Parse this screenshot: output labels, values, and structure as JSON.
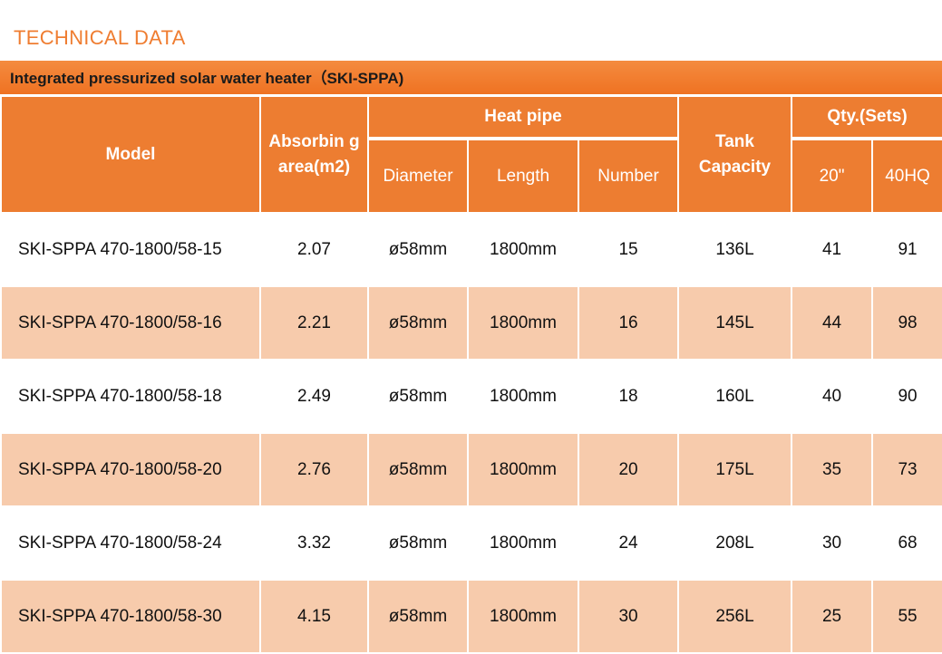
{
  "heading": "TECHNICAL DATA",
  "title": "Integrated pressurized solar water heater（SKI-SPPA)",
  "header": {
    "model": "Model",
    "absorbing_area": "Absorbin g area(m2)",
    "heat_pipe": "Heat pipe",
    "diameter": "Diameter",
    "length": "Length",
    "number": "Number",
    "tank_capacity": "Tank Capacity",
    "qty": "Qty.(Sets)",
    "qty_20": "20\"",
    "qty_40hq": "40HQ"
  },
  "rows": [
    {
      "model": "SKI-SPPA 470-1800/58-15",
      "area": "2.07",
      "diameter": "ø58mm",
      "length": "1800mm",
      "number": "15",
      "tank": "136L",
      "q20": "41",
      "q40": "91"
    },
    {
      "model": "SKI-SPPA 470-1800/58-16",
      "area": "2.21",
      "diameter": "ø58mm",
      "length": "1800mm",
      "number": "16",
      "tank": "145L",
      "q20": "44",
      "q40": "98"
    },
    {
      "model": "SKI-SPPA 470-1800/58-18",
      "area": "2.49",
      "diameter": "ø58mm",
      "length": "1800mm",
      "number": "18",
      "tank": "160L",
      "q20": "40",
      "q40": "90"
    },
    {
      "model": "SKI-SPPA 470-1800/58-20",
      "area": "2.76",
      "diameter": "ø58mm",
      "length": "1800mm",
      "number": "20",
      "tank": "175L",
      "q20": "35",
      "q40": "73"
    },
    {
      "model": "SKI-SPPA 470-1800/58-24",
      "area": "3.32",
      "diameter": "ø58mm",
      "length": "1800mm",
      "number": "24",
      "tank": "208L",
      "q20": "30",
      "q40": "68"
    },
    {
      "model": "SKI-SPPA 470-1800/58-30",
      "area": "4.15",
      "diameter": "ø58mm",
      "length": "1800mm",
      "number": "30",
      "tank": "256L",
      "q20": "25",
      "q40": "55"
    }
  ],
  "colors": {
    "accent": "#ed7d31",
    "row_band": "#f7cbac",
    "heading": "#ef7d31"
  }
}
